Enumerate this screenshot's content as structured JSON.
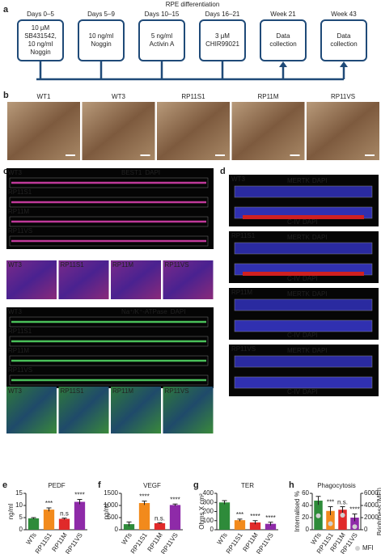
{
  "panels": {
    "a": {
      "letter": "a",
      "title": "RPE differentiation",
      "steps": [
        {
          "header": "Days 0–5",
          "lines": [
            "10 μM",
            "SB431542,",
            "10 ng/ml",
            "Noggin"
          ]
        },
        {
          "header": "Days 5–9",
          "lines": [
            "10 ng/ml",
            "Noggin"
          ]
        },
        {
          "header": "Days 10–15",
          "lines": [
            "5 ng/ml",
            "Activin A"
          ]
        },
        {
          "header": "Days 16–21",
          "lines": [
            "3 μM",
            "CHIR99021"
          ]
        },
        {
          "header": "Week 21",
          "lines": [
            "Data",
            "collection"
          ]
        },
        {
          "header": "Week 43",
          "lines": [
            "Data",
            "collection"
          ]
        }
      ]
    },
    "b": {
      "letter": "b",
      "labels": [
        "WT1",
        "WT3",
        "RP11S1",
        "RP11M",
        "RP11VS"
      ]
    },
    "c": {
      "letter": "c",
      "groups": [
        {
          "stain": [
            "BEST1",
            "DAPI"
          ],
          "labels": [
            "WT3",
            "RP11S1",
            "RP11M",
            "RP11VS"
          ]
        },
        {
          "stain": [
            "Na⁺/K⁺-ATPase",
            "DAPI"
          ],
          "labels": [
            "WT3",
            "RP11S1",
            "RP11M",
            "RP11VS"
          ]
        }
      ]
    },
    "d": {
      "letter": "d",
      "groups": [
        {
          "label": "WT3",
          "top": [
            "MERTK",
            "DAPI"
          ],
          "bottom": [
            "C-IV",
            "DAPI"
          ]
        },
        {
          "label": "RP11S1",
          "top": [
            "MERTK",
            "DAPI"
          ],
          "bottom": [
            "C-IV",
            "DAPI"
          ]
        },
        {
          "label": "RP11M",
          "top": [
            "MERTK",
            "DAPI"
          ],
          "bottom": [
            "C-IV",
            "DAPI"
          ]
        },
        {
          "label": "RP11VS",
          "top": [
            "MERTK",
            "DAPI"
          ],
          "bottom": [
            "C-IV",
            "DAPI"
          ]
        }
      ]
    }
  },
  "chart_data": [
    {
      "type": "bar",
      "letter": "e",
      "title": "PEDF",
      "ylabel": "ng/ml",
      "categories": [
        "WTs",
        "RP11S1",
        "RP11M",
        "RP11VS"
      ],
      "values": [
        4.7,
        8.3,
        4.5,
        11.5
      ],
      "errors": [
        0.3,
        0.7,
        0.3,
        1.0
      ],
      "colors": [
        "#2e8b3a",
        "#f28a1c",
        "#e02a2a",
        "#8e2aa8"
      ],
      "annotations": [
        null,
        "***",
        "n.s",
        "****"
      ],
      "ylim": [
        0,
        15
      ],
      "yticks": [
        0,
        5,
        10,
        15
      ]
    },
    {
      "type": "bar",
      "letter": "f",
      "title": "VEGF",
      "ylabel": "pg/ml",
      "categories": [
        "WTs",
        "RP11S1",
        "RP11M",
        "RP11VS"
      ],
      "values": [
        230,
        1100,
        270,
        1020
      ],
      "errors": [
        90,
        80,
        20,
        40
      ],
      "colors": [
        "#2e8b3a",
        "#f28a1c",
        "#e02a2a",
        "#8e2aa8"
      ],
      "annotations": [
        null,
        "****",
        "n.s.",
        "****"
      ],
      "ylim": [
        0,
        1500
      ],
      "yticks": [
        0,
        500,
        1000,
        1500
      ]
    },
    {
      "type": "bar",
      "letter": "g",
      "title": "TER",
      "ylabel": "Ohms X cm²",
      "categories": [
        "WTs",
        "RP11S1",
        "RP11M",
        "RP11VS"
      ],
      "values": [
        300,
        105,
        80,
        65
      ],
      "errors": [
        20,
        12,
        20,
        18
      ],
      "colors": [
        "#2e8b3a",
        "#f28a1c",
        "#e02a2a",
        "#8e2aa8"
      ],
      "annotations": [
        null,
        "***",
        "****",
        "****"
      ],
      "ylim": [
        0,
        400
      ],
      "yticks": [
        0,
        100,
        200,
        300,
        400
      ]
    },
    {
      "type": "bar",
      "letter": "h",
      "title": "Phagocytosis",
      "ylabel": "Internalised %",
      "y2label": "Brightness (MFI)",
      "categories": [
        "WTs",
        "RP11S1",
        "RP11M",
        "RP11VS"
      ],
      "values": [
        48,
        31,
        33,
        20
      ],
      "errors": [
        7,
        7,
        5,
        6
      ],
      "colors": [
        "#2e8b3a",
        "#f28a1c",
        "#e02a2a",
        "#8e2aa8"
      ],
      "annotations": [
        null,
        "***",
        "n.s.",
        "****"
      ],
      "ylim": [
        0,
        60
      ],
      "yticks": [
        0,
        20,
        40,
        60
      ],
      "y2lim": [
        0,
        6000
      ],
      "y2ticks": [
        0,
        2000,
        4000,
        6000
      ],
      "mfi": {
        "name": "MFI",
        "axis": "y2",
        "color": "#d0d0d0",
        "values": [
          2300,
          1000,
          2400,
          500
        ]
      }
    }
  ]
}
